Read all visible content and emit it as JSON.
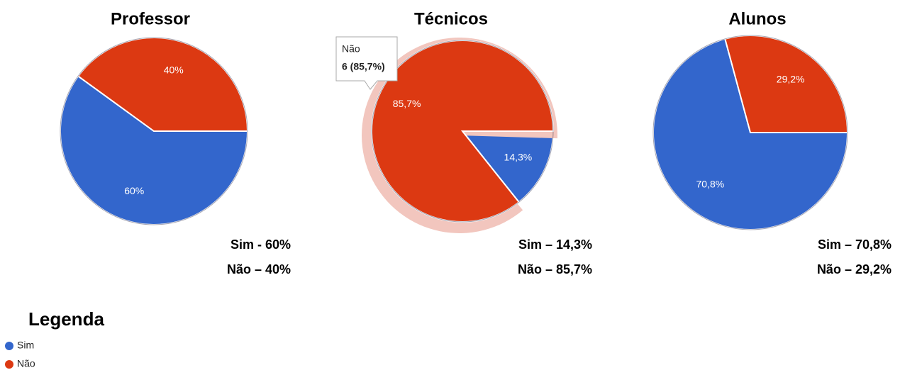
{
  "chart_data": [
    {
      "type": "pie",
      "title": "Professor",
      "categories": [
        "Sim",
        "Não"
      ],
      "values": [
        60,
        40
      ],
      "value_labels": [
        "60%",
        "40%"
      ],
      "colors": [
        "#3366cc",
        "#dc3912"
      ],
      "notes": [
        "Sim - 60%",
        "Não – 40%"
      ]
    },
    {
      "type": "pie",
      "title": "Técnicos",
      "categories": [
        "Sim",
        "Não"
      ],
      "values": [
        14.3,
        85.7
      ],
      "value_labels": [
        "14,3%",
        "85,7%"
      ],
      "colors": [
        "#3366cc",
        "#dc3912"
      ],
      "notes": [
        "Sim – 14,3%",
        "Não – 85,7%"
      ],
      "highlighted": 1,
      "tooltip": {
        "title": "Não",
        "text": "6 (85,7%)"
      }
    },
    {
      "type": "pie",
      "title": "Alunos",
      "categories": [
        "Sim",
        "Não"
      ],
      "values": [
        70.8,
        29.2
      ],
      "value_labels": [
        "70,8%",
        "29,2%"
      ],
      "colors": [
        "#3366cc",
        "#dc3912"
      ],
      "notes": [
        "Sim – 70,8%",
        "Não – 29,2%"
      ]
    }
  ],
  "legend": {
    "title": "Legenda",
    "items": [
      "Sim",
      "Não"
    ],
    "colors": [
      "#3366cc",
      "#dc3912"
    ]
  }
}
